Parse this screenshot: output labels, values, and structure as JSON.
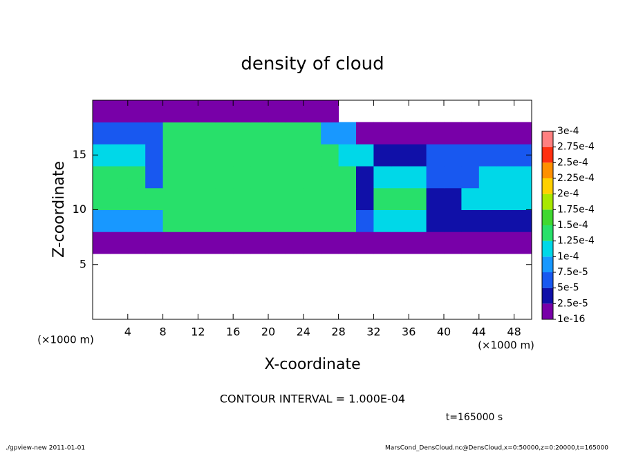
{
  "chart_data": {
    "type": "heatmap",
    "title": "density of cloud",
    "xlabel": "X-coordinate",
    "ylabel": "Z-coordinate",
    "x_unit": "(×1000 m)",
    "y_unit": "(×1000 m)",
    "contour_note": "CONTOUR INTERVAL = 1.000E-04",
    "time_note": "t=165000 s",
    "footer_left": "./gpview-new  2011-01-01",
    "footer_right": "MarsCond_DensCloud.nc@DensCloud,x=0:50000,z=0:20000,t=165000",
    "xlim": [
      0,
      50
    ],
    "ylim": [
      0,
      20
    ],
    "xticks": [
      4,
      8,
      12,
      16,
      20,
      24,
      28,
      32,
      36,
      40,
      44,
      48
    ],
    "yticks": [
      5,
      10,
      15
    ],
    "x": [
      1,
      3,
      5,
      7,
      9,
      11,
      13,
      15,
      17,
      19,
      21,
      23,
      25,
      27,
      29,
      31,
      33,
      35,
      37,
      39,
      41,
      43,
      45,
      47,
      49
    ],
    "y": [
      1,
      3,
      5,
      7,
      9,
      11,
      13,
      15,
      17,
      19
    ],
    "values": [
      [
        0,
        0,
        0,
        0,
        0,
        0,
        0,
        0,
        0,
        0,
        0,
        0,
        0,
        0,
        0,
        0,
        0,
        0,
        0,
        0,
        0,
        0,
        0,
        0,
        0
      ],
      [
        0,
        0,
        0,
        0,
        0,
        0,
        0,
        0,
        0,
        0,
        0,
        0,
        0,
        0,
        0,
        0,
        0,
        0,
        0,
        0,
        0,
        0,
        0,
        0,
        0
      ],
      [
        0,
        0,
        0,
        0,
        0,
        0,
        0,
        0,
        0,
        0,
        0,
        0,
        0,
        0,
        0,
        0,
        0,
        0,
        0,
        0,
        0,
        0,
        0,
        0,
        0
      ],
      [
        2e-05,
        2e-05,
        2e-05,
        2e-05,
        2e-05,
        2e-05,
        2e-05,
        2e-05,
        2e-05,
        2e-05,
        2e-05,
        2e-05,
        2e-05,
        2e-05,
        2e-05,
        2e-05,
        2e-05,
        2e-05,
        2e-05,
        1e-06,
        1e-06,
        1e-06,
        1e-06,
        1e-06,
        1e-06
      ],
      [
        8e-05,
        8e-05,
        8e-05,
        8e-05,
        0.00013,
        0.00013,
        0.00013,
        0.00013,
        0.00013,
        0.00013,
        0.00013,
        0.00013,
        0.00013,
        0.00013,
        0.00013,
        5e-05,
        0.00012,
        0.00012,
        0.00012,
        3e-05,
        3e-05,
        3e-05,
        3e-05,
        3e-05,
        3e-05
      ],
      [
        0.00013,
        0.00013,
        0.00013,
        0.00013,
        0.000145,
        0.000145,
        0.000145,
        0.000145,
        0.000145,
        0.000145,
        0.000145,
        0.000145,
        0.000145,
        0.000145,
        0.000145,
        4e-05,
        0.00013,
        0.00013,
        0.00013,
        3e-05,
        3e-05,
        0.00011,
        0.00011,
        0.00011,
        0.00011
      ],
      [
        0.000135,
        0.000135,
        0.000135,
        6e-05,
        0.000145,
        0.000145,
        0.000145,
        0.000145,
        0.000145,
        0.000145,
        0.000145,
        0.000145,
        0.000145,
        0.000145,
        0.000145,
        3e-05,
        0.00012,
        0.00012,
        0.00012,
        5e-05,
        5e-05,
        5e-05,
        0.00012,
        0.00012,
        0.00012
      ],
      [
        0.0001,
        0.0001,
        0.0001,
        5e-05,
        0.000145,
        0.000145,
        0.000145,
        0.000145,
        0.000145,
        0.000145,
        0.000145,
        0.000145,
        0.000145,
        0.000145,
        0.0001,
        0.0001,
        4e-05,
        4e-05,
        4e-05,
        5e-05,
        5e-05,
        5e-05,
        5e-05,
        5e-05,
        5e-05
      ],
      [
        6e-05,
        6e-05,
        6e-05,
        6e-05,
        0.00013,
        0.00013,
        0.00013,
        0.00013,
        0.00013,
        0.00013,
        0.00013,
        0.00013,
        0.00013,
        8e-05,
        8e-05,
        1e-06,
        1e-06,
        1e-06,
        1e-06,
        1e-06,
        1e-06,
        1e-06,
        1e-06,
        1e-06,
        1e-06
      ],
      [
        1e-06,
        1e-06,
        1e-06,
        1e-06,
        1e-06,
        1e-06,
        1e-06,
        1e-06,
        1e-06,
        1e-06,
        1e-06,
        1e-06,
        1e-06,
        1e-06,
        0,
        0,
        0,
        0,
        0,
        0,
        0,
        0,
        0,
        0,
        0
      ]
    ],
    "colorbar": {
      "levels": [
        {
          "value": 1e-16,
          "label": "1e-16"
        },
        {
          "value": 2.5e-05,
          "label": "2.5e-5"
        },
        {
          "value": 5e-05,
          "label": "5e-5"
        },
        {
          "value": 7.5e-05,
          "label": "7.5e-5"
        },
        {
          "value": 0.0001,
          "label": "1e-4"
        },
        {
          "value": 0.000125,
          "label": "1.25e-4"
        },
        {
          "value": 0.00015,
          "label": "1.5e-4"
        },
        {
          "value": 0.000175,
          "label": "1.75e-4"
        },
        {
          "value": 0.0002,
          "label": "2e-4"
        },
        {
          "value": 0.000225,
          "label": "2.25e-4"
        },
        {
          "value": 0.00025,
          "label": "2.5e-4"
        },
        {
          "value": 0.000275,
          "label": "2.75e-4"
        },
        {
          "value": 0.0003,
          "label": "3e-4"
        }
      ],
      "colors": [
        "#7800a8",
        "#1010a8",
        "#1858f0",
        "#1898ff",
        "#00d8e8",
        "#28e06a",
        "#40d830",
        "#a8e800",
        "#ffd000",
        "#ff9000",
        "#ff3010",
        "#ff8080"
      ]
    }
  }
}
